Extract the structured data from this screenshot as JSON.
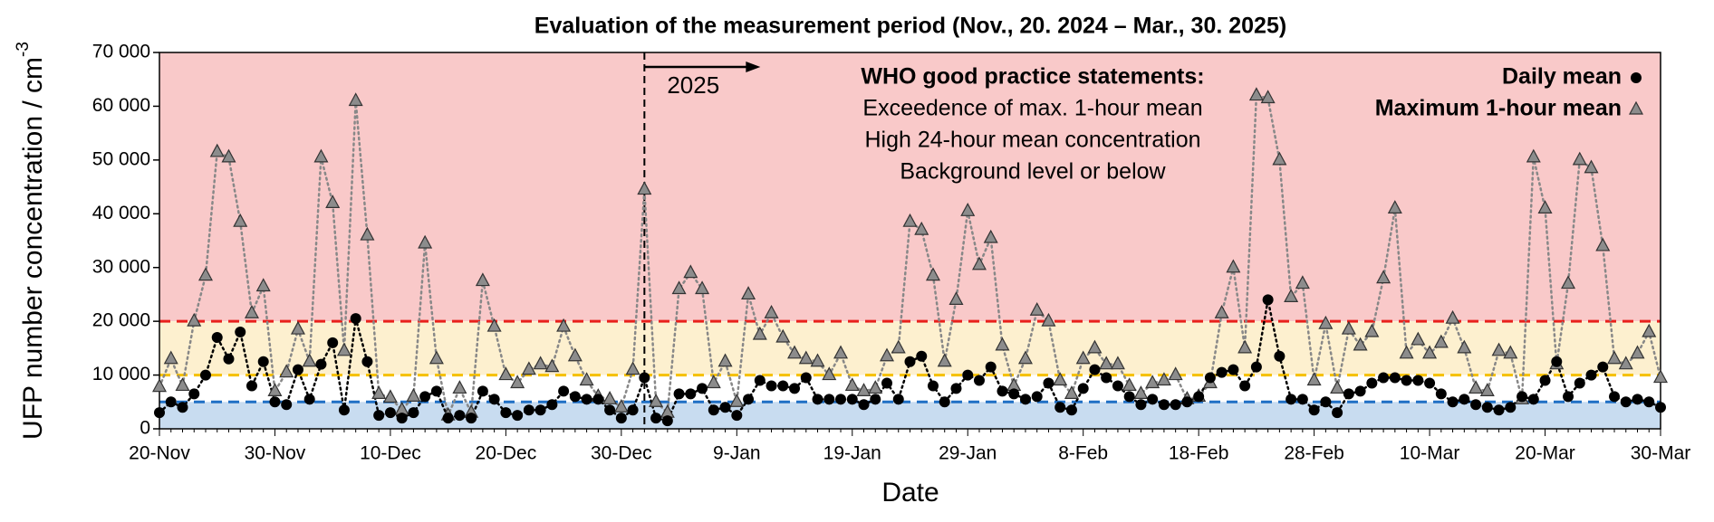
{
  "chart_data": {
    "type": "line",
    "title": "Evaluation of the measurement period (Nov., 20. 2024 – Mar., 30. 2025)",
    "xlabel": "Date",
    "ylabel": {
      "text": "UFP number concentration / cm",
      "superscript": "-3"
    },
    "categories": [
      "20-Nov",
      null,
      null,
      null,
      null,
      null,
      null,
      null,
      null,
      null,
      "30-Nov",
      null,
      null,
      null,
      null,
      null,
      null,
      null,
      null,
      null,
      "10-Dec",
      null,
      null,
      null,
      null,
      null,
      null,
      null,
      null,
      null,
      "20-Dec",
      null,
      null,
      null,
      null,
      null,
      null,
      null,
      null,
      null,
      "30-Dec",
      null,
      null,
      null,
      null,
      null,
      null,
      null,
      null,
      null,
      "9-Jan",
      null,
      null,
      null,
      null,
      null,
      null,
      null,
      null,
      null,
      "19-Jan",
      null,
      null,
      null,
      null,
      null,
      null,
      null,
      null,
      null,
      "29-Jan",
      null,
      null,
      null,
      null,
      null,
      null,
      null,
      null,
      null,
      "8-Feb",
      null,
      null,
      null,
      null,
      null,
      null,
      null,
      null,
      null,
      "18-Feb",
      null,
      null,
      null,
      null,
      null,
      null,
      null,
      null,
      null,
      "28-Feb",
      null,
      null,
      null,
      null,
      null,
      null,
      null,
      null,
      null,
      "10-Mar",
      null,
      null,
      null,
      null,
      null,
      null,
      null,
      null,
      null,
      "20-Mar",
      null,
      null,
      null,
      null,
      null,
      null,
      null,
      null,
      null,
      "30-Mar"
    ],
    "ylim": [
      0,
      70000
    ],
    "yticks": [
      0,
      {
        "value": 10000,
        "label": "10 000"
      },
      {
        "value": 20000,
        "label": "20 000"
      },
      {
        "value": 30000,
        "label": "30 000"
      },
      {
        "value": 40000,
        "label": "40 000"
      },
      {
        "value": 50000,
        "label": "50 000"
      },
      {
        "value": 60000,
        "label": "60 000"
      },
      {
        "value": 70000,
        "label": "70 000"
      }
    ],
    "series": [
      {
        "name": "Daily mean",
        "color": "#000000",
        "marker": "circle",
        "values": [
          3000,
          5000,
          4000,
          6500,
          10000,
          17000,
          13000,
          18000,
          8000,
          12500,
          5000,
          4500,
          11000,
          5500,
          12000,
          16000,
          3500,
          20500,
          12500,
          2500,
          3000,
          2000,
          3000,
          6000,
          7000,
          2000,
          2500,
          2000,
          7000,
          5500,
          3000,
          2500,
          3500,
          3500,
          4500,
          7000,
          6000,
          5500,
          5500,
          3500,
          2000,
          3500,
          9500,
          2000,
          1500,
          6500,
          6500,
          7500,
          3500,
          4000,
          2500,
          5500,
          9000,
          8000,
          8000,
          7500,
          9500,
          5500,
          5500,
          5500,
          5500,
          4500,
          5500,
          8500,
          5500,
          12500,
          13500,
          8000,
          5000,
          7500,
          10000,
          9000,
          11500,
          7000,
          6500,
          5500,
          6000,
          8500,
          4000,
          3500,
          7500,
          11000,
          9500,
          8000,
          6000,
          4500,
          5500,
          4500,
          4500,
          5000,
          6000,
          9500,
          10500,
          11000,
          8000,
          11500,
          24000,
          13500,
          5500,
          5500,
          3500,
          5000,
          3000,
          6500,
          7000,
          8500,
          9500,
          9500,
          9000,
          9000,
          8500,
          6500,
          5000,
          5500,
          4500,
          4000,
          3500,
          4000,
          6000,
          5500,
          9000,
          12500,
          6000,
          8500,
          10000,
          11500,
          6000,
          5000,
          5500,
          5000,
          4000
        ]
      },
      {
        "name": "Maximum 1-hour mean",
        "color": "#8c8c8c",
        "marker": "triangle",
        "values": [
          7800,
          13000,
          8000,
          20000,
          28500,
          51500,
          50500,
          38500,
          21500,
          26500,
          7000,
          10500,
          18500,
          12500,
          50500,
          42000,
          14500,
          61000,
          36000,
          6500,
          5800,
          3500,
          6000,
          34500,
          13000,
          2500,
          7500,
          3000,
          27500,
          19000,
          10000,
          8500,
          11000,
          12000,
          11500,
          19000,
          13500,
          9000,
          6000,
          5500,
          4000,
          11000,
          44500,
          5000,
          3000,
          26000,
          29000,
          26000,
          8500,
          12500,
          5000,
          25000,
          17500,
          21500,
          17000,
          14000,
          13000,
          12500,
          10000,
          14000,
          8000,
          7000,
          7500,
          13500,
          15000,
          38500,
          37000,
          28500,
          12500,
          24000,
          40500,
          30500,
          35500,
          15500,
          8000,
          13000,
          22000,
          20000,
          9000,
          6500,
          13000,
          15000,
          12000,
          12000,
          8000,
          6500,
          8500,
          9000,
          10000,
          5500,
          6000,
          8500,
          21500,
          30000,
          15000,
          62000,
          61500,
          50000,
          24500,
          27000,
          9000,
          19500,
          7500,
          18500,
          15500,
          18000,
          28000,
          41000,
          14000,
          16500,
          14000,
          16000,
          20500,
          15000,
          7500,
          7000,
          14500,
          14000,
          5500,
          50500,
          41000,
          12000,
          27000,
          50000,
          48500,
          34000,
          13000,
          12000,
          14000,
          18000,
          9500
        ]
      }
    ],
    "who_legend": {
      "title": "WHO good practice statements:",
      "items": [
        {
          "label": "Exceedence of max. 1-hour mean",
          "value": 20000,
          "color": "#e8201c",
          "band_color": "#f9c9c9"
        },
        {
          "label": "High 24-hour mean concentration",
          "value": 10000,
          "color": "#f5c000",
          "band_color": "#fdf0cf"
        },
        {
          "label": "Background level or below",
          "value": 5000,
          "color": "#1f6fc5",
          "band_color": "#c8dcf0"
        }
      ]
    },
    "year_marker": {
      "label": "2025",
      "category_index": 42
    }
  }
}
